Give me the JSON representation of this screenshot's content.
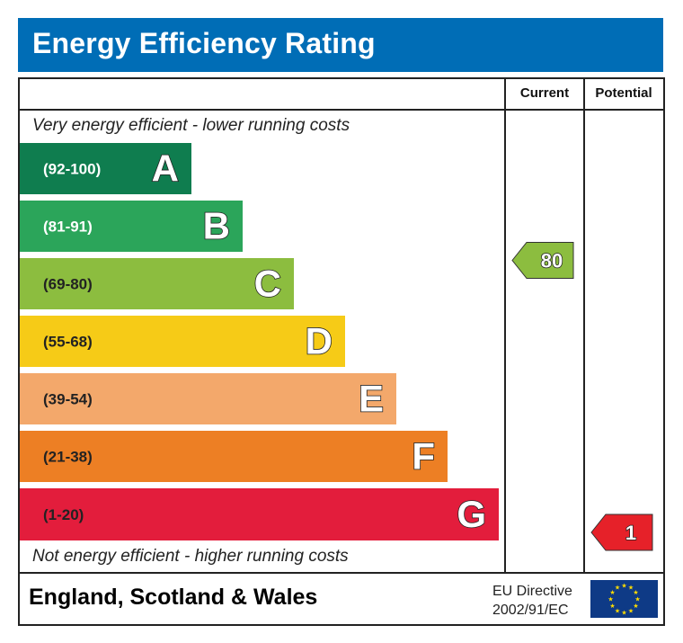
{
  "title": "Energy Efficiency Rating",
  "columns": {
    "current": "Current",
    "potential": "Potential"
  },
  "top_caption": "Very energy efficient - lower running costs",
  "bottom_caption": "Not energy efficient - higher running costs",
  "footer": {
    "country": "England, Scotland & Wales",
    "directive_line1": "EU Directive",
    "directive_line2": "2002/91/EC",
    "flag_icon": "eu-flag-icon"
  },
  "colors": {
    "header_blue": "#006db6",
    "border": "#222222"
  },
  "chart_data": {
    "type": "bar",
    "title": "Energy Efficiency Rating",
    "orientation": "horizontal",
    "bands": [
      {
        "letter": "A",
        "range": "(92-100)",
        "color": "#0f7d4f",
        "label_color": "#ffffff"
      },
      {
        "letter": "B",
        "range": "(81-91)",
        "color": "#2ba55a",
        "label_color": "#ffffff"
      },
      {
        "letter": "C",
        "range": "(69-80)",
        "color": "#8cbd3f",
        "label_color": "#222222"
      },
      {
        "letter": "D",
        "range": "(55-68)",
        "color": "#f6cb17",
        "label_color": "#222222"
      },
      {
        "letter": "E",
        "range": "(39-54)",
        "color": "#f3a86b",
        "label_color": "#222222"
      },
      {
        "letter": "F",
        "range": "(21-38)",
        "color": "#ed7f24",
        "label_color": "#222222"
      },
      {
        "letter": "G",
        "range": "(1-20)",
        "color": "#e31d3c",
        "label_color": "#222222"
      }
    ],
    "current": {
      "value": 80,
      "band": "C",
      "color": "#8cbd3f"
    },
    "potential": {
      "value": 1,
      "band": "G",
      "color": "#e62129"
    }
  }
}
